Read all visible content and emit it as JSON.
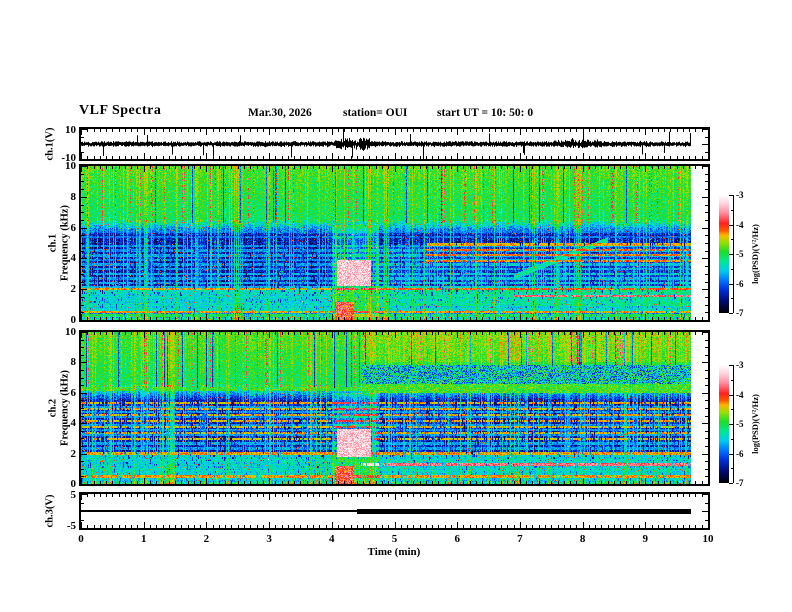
{
  "header": {
    "title": "VLF Spectra",
    "date": "Mar.30, 2026",
    "station": "station= OUI",
    "start_ut": "start UT =  10: 50: 0"
  },
  "time_axis": {
    "label": "Time (min)",
    "ticks": [
      "0",
      "1",
      "2",
      "3",
      "4",
      "5",
      "6",
      "7",
      "8",
      "9",
      "10"
    ]
  },
  "panels": {
    "ch1_wave": {
      "label": "ch.1(V)",
      "yticks": [
        "10",
        "-10"
      ],
      "ylim": [
        -10,
        10
      ]
    },
    "spec1": {
      "label_ch": "ch.1",
      "label_freq": "Frequency (kHz)",
      "yticks": [
        "10",
        "8",
        "6",
        "4",
        "2",
        "0"
      ],
      "ylim": [
        0,
        10
      ]
    },
    "spec2": {
      "label_ch": "ch.2",
      "label_freq": "Frequency (kHz)",
      "yticks": [
        "10",
        "8",
        "6",
        "4",
        "2",
        "0"
      ],
      "ylim": [
        0,
        10
      ]
    },
    "ch3": {
      "label": "ch.3(V)",
      "yticks": [
        "5",
        "-5"
      ],
      "ylim": [
        -5,
        5
      ]
    }
  },
  "colorbar": {
    "label": "log(PSD)(V²/Hz)",
    "ticks": [
      "-3",
      "-4",
      "-5",
      "-6",
      "-7"
    ],
    "range": [
      -3,
      -7
    ]
  },
  "colormap_stops": [
    [
      0.0,
      "#000000"
    ],
    [
      0.1,
      "#000a70"
    ],
    [
      0.2,
      "#0030dd"
    ],
    [
      0.28,
      "#0077ff"
    ],
    [
      0.36,
      "#00ccee"
    ],
    [
      0.44,
      "#00e890"
    ],
    [
      0.52,
      "#1edc2a"
    ],
    [
      0.6,
      "#9ae000"
    ],
    [
      0.66,
      "#ffb400"
    ],
    [
      0.7,
      "#ff5500"
    ],
    [
      0.76,
      "#ff2222"
    ],
    [
      0.85,
      "#ff8fa0"
    ],
    [
      0.93,
      "#ffd6de"
    ],
    [
      1.0,
      "#ffffff"
    ]
  ],
  "gen": {
    "data_end_min": 9.73,
    "wave": {
      "seed": 101,
      "base_amp": 2.0,
      "bursts": [
        {
          "t": [
            4.05,
            4.6
          ],
          "amp": 5.5
        },
        {
          "t": [
            7.5,
            8.3
          ],
          "amp": 3.2
        }
      ],
      "spikes": [
        {
          "t": 0.35,
          "a": -8
        },
        {
          "t": 1.05,
          "a": 6
        },
        {
          "t": 1.45,
          "a": -7
        },
        {
          "t": 2.1,
          "a": -13
        },
        {
          "t": 3.35,
          "a": -9
        },
        {
          "t": 4.18,
          "a": 10
        },
        {
          "t": 4.32,
          "a": -9
        },
        {
          "t": 5.45,
          "a": -12
        },
        {
          "t": 6.5,
          "a": 7
        },
        {
          "t": 7.05,
          "a": -6
        },
        {
          "t": 8.0,
          "a": 6
        },
        {
          "t": 8.95,
          "a": -7
        },
        {
          "t": 9.3,
          "a": -6
        }
      ]
    },
    "spec1": {
      "seed": 7,
      "knots": [
        [
          0,
          -5.3
        ],
        [
          0.35,
          -5.95
        ],
        [
          1,
          -6.1
        ],
        [
          2,
          -6.45
        ],
        [
          5.5,
          -6.45
        ],
        [
          6.5,
          -5.1
        ],
        [
          8,
          -5.0
        ],
        [
          10,
          -4.85
        ]
      ],
      "hlines": [
        {
          "f": 4.8,
          "v": -5.8,
          "w": 0.05
        },
        {
          "f": 4.5,
          "v": -5.8,
          "w": 0.05
        },
        {
          "f": 4.2,
          "v": -5.75,
          "w": 0.05
        },
        {
          "f": 3.9,
          "v": -5.8,
          "w": 0.05
        },
        {
          "f": 3.6,
          "v": -5.75,
          "w": 0.05
        },
        {
          "f": 3.3,
          "v": -5.8,
          "w": 0.05
        },
        {
          "f": 3.0,
          "v": -5.7,
          "w": 0.05
        },
        {
          "f": 2.7,
          "v": -5.75,
          "w": 0.05
        },
        {
          "f": 2.4,
          "v": -5.7,
          "w": 0.05
        },
        {
          "f": 2.1,
          "v": -5.6,
          "w": 0.05
        },
        {
          "f": 5.4,
          "v": -5.9,
          "w": 0.05
        },
        {
          "f": 5.75,
          "v": -5.9,
          "w": 0.05
        },
        {
          "f": 1.9,
          "v": -5.35,
          "w": 0.07
        },
        {
          "f": 1.75,
          "v": -5.4,
          "w": 0.06
        },
        {
          "f": 1.6,
          "v": -5.5,
          "w": 0.06
        },
        {
          "f": 1.45,
          "v": -5.45,
          "w": 0.06
        },
        {
          "f": 1.3,
          "v": -5.5,
          "w": 0.06
        },
        {
          "f": 1.15,
          "v": -5.5,
          "w": 0.06
        },
        {
          "f": 1.0,
          "v": -5.45,
          "w": 0.06
        },
        {
          "f": 0.85,
          "v": -5.5,
          "w": 0.06
        },
        {
          "f": 0.7,
          "v": -5.45,
          "w": 0.06
        },
        {
          "f": 0.55,
          "v": -5.5,
          "w": 0.06
        },
        {
          "f": 2.0,
          "v": -4.35,
          "w": 0.04
        },
        {
          "f": 0.5,
          "v": -4.35,
          "w": 0.04
        },
        {
          "f": 0.3,
          "v": -5.05,
          "w": 0.08
        },
        {
          "f": 4.9,
          "v": -4.4,
          "w": 0.04,
          "t0": 5.5
        },
        {
          "f": 4.55,
          "v": -4.4,
          "w": 0.04,
          "t0": 5.5
        },
        {
          "f": 4.2,
          "v": -4.4,
          "w": 0.04,
          "t0": 5.5
        },
        {
          "f": 3.85,
          "v": -4.45,
          "w": 0.04,
          "t0": 5.5
        },
        {
          "f": 1.55,
          "v": -3.9,
          "w": 0.05,
          "t0": 6.9
        }
      ],
      "features": [
        {
          "t": [
            4.7,
            9.73
          ],
          "f": [
            0.9,
            4.8
          ],
          "mode": "add",
          "v": 0.18
        },
        {
          "t": [
            4.0,
            4.75
          ],
          "f": [
            0,
            6.2
          ],
          "mode": "add",
          "v": 0.5
        },
        {
          "t": [
            4.08,
            4.62
          ],
          "f": [
            2.2,
            3.9
          ],
          "mode": "set",
          "v": -3.35,
          "noise": 0.3
        },
        {
          "t": [
            4.05,
            4.35
          ],
          "f": [
            0,
            1.2
          ],
          "mode": "set",
          "v": -3.9,
          "noise": 0.45
        },
        {
          "t": [
            6.9,
            8.4
          ],
          "f": [
            2.8,
            5.2
          ],
          "mode": "diag",
          "v": -5.3,
          "w": 0.18
        }
      ]
    },
    "spec2": {
      "seed": 23,
      "knots": [
        [
          0,
          -5.3
        ],
        [
          0.35,
          -5.95
        ],
        [
          1,
          -6.1
        ],
        [
          2,
          -6.45
        ],
        [
          5.5,
          -6.45
        ],
        [
          6.5,
          -5.1
        ],
        [
          8,
          -5.0
        ],
        [
          10,
          -4.85
        ]
      ],
      "hlines": [
        {
          "f": 5.35,
          "v": -4.4,
          "w": 0.04,
          "p": 0.7
        },
        {
          "f": 4.95,
          "v": -4.4,
          "w": 0.04,
          "p": 0.7
        },
        {
          "f": 4.55,
          "v": -4.4,
          "w": 0.04,
          "p": 0.7
        },
        {
          "f": 4.15,
          "v": -4.4,
          "w": 0.04,
          "p": 0.7
        },
        {
          "f": 3.75,
          "v": -4.45,
          "w": 0.04,
          "p": 0.7
        },
        {
          "f": 3.35,
          "v": -4.4,
          "w": 0.04,
          "p": 0.7
        },
        {
          "f": 2.95,
          "v": -4.45,
          "w": 0.04,
          "p": 0.7
        },
        {
          "f": 5.05,
          "v": -5.75,
          "w": 0.05
        },
        {
          "f": 4.75,
          "v": -5.75,
          "w": 0.05
        },
        {
          "f": 4.45,
          "v": -5.8,
          "w": 0.05
        },
        {
          "f": 3.85,
          "v": -5.75,
          "w": 0.05
        },
        {
          "f": 3.55,
          "v": -5.8,
          "w": 0.05
        },
        {
          "f": 3.25,
          "v": -5.75,
          "w": 0.05
        },
        {
          "f": 2.65,
          "v": -5.7,
          "w": 0.05
        },
        {
          "f": 2.35,
          "v": -5.75,
          "w": 0.05
        },
        {
          "f": 2.05,
          "v": -5.7,
          "w": 0.05
        },
        {
          "f": 1.85,
          "v": -5.45,
          "w": 0.06
        },
        {
          "f": 1.7,
          "v": -5.5,
          "w": 0.06
        },
        {
          "f": 1.55,
          "v": -5.45,
          "w": 0.06
        },
        {
          "f": 1.4,
          "v": -5.5,
          "w": 0.06
        },
        {
          "f": 1.25,
          "v": -5.45,
          "w": 0.06
        },
        {
          "f": 1.1,
          "v": -5.5,
          "w": 0.06
        },
        {
          "f": 0.95,
          "v": -5.45,
          "w": 0.06
        },
        {
          "f": 0.8,
          "v": -5.5,
          "w": 0.06
        },
        {
          "f": 0.65,
          "v": -5.45,
          "w": 0.06
        },
        {
          "f": 0.5,
          "v": -5.5,
          "w": 0.06
        },
        {
          "f": 0.35,
          "v": -5.45,
          "w": 0.06
        },
        {
          "f": 6.25,
          "v": -4.9,
          "w": 0.12,
          "p": 0.9
        },
        {
          "f": 2.0,
          "v": -4.35,
          "w": 0.04
        },
        {
          "f": 0.5,
          "v": -4.35,
          "w": 0.04
        },
        {
          "f": 1.3,
          "v": -3.7,
          "w": 0.05,
          "t0": 4.45
        }
      ],
      "features": [
        {
          "t": [
            4.45,
            9.73
          ],
          "f": [
            8,
            10
          ],
          "mode": "add",
          "v": 0.15
        },
        {
          "t": [
            4.45,
            9.73
          ],
          "f": [
            6.6,
            7.8
          ],
          "mode": "set",
          "v": -5.5,
          "noise": 0.85
        },
        {
          "t": [
            4.45,
            9.73
          ],
          "f": [
            6.0,
            6.6
          ],
          "mode": "set",
          "v": -4.85,
          "noise": 0.3
        },
        {
          "t": [
            4.0,
            4.75
          ],
          "f": [
            0,
            6.0
          ],
          "mode": "add",
          "v": 0.5
        },
        {
          "t": [
            4.08,
            4.62
          ],
          "f": [
            1.8,
            3.6
          ],
          "mode": "set",
          "v": -3.35,
          "noise": 0.3
        },
        {
          "t": [
            4.05,
            4.35
          ],
          "f": [
            0,
            1.2
          ],
          "mode": "set",
          "v": -3.9,
          "noise": 0.45
        }
      ]
    },
    "ch3": {
      "value": 0,
      "segments": [
        {
          "t": [
            0,
            4.4
          ],
          "lw": 2
        },
        {
          "t": [
            4.4,
            9.73
          ],
          "lw": 5
        }
      ]
    }
  },
  "chart_data": [
    {
      "type": "line",
      "panel": "ch.1(V) waveform",
      "xlabel": "Time (min)",
      "xlim": [
        0,
        10
      ],
      "ylim": [
        -10,
        10
      ],
      "description": "Broadband audio waveform fluctuating about 0 V with impulsive spikes (notable near t≈2.1, 4.2–4.6, 5.45 min); amplitude burst at t≈4.1–4.6 min; recording ends at t≈9.73 min"
    },
    {
      "type": "heatmap",
      "panel": "ch.1 spectrogram",
      "ylabel": "Frequency (kHz)",
      "xlim": [
        0,
        10
      ],
      "ylim": [
        0,
        10
      ],
      "zlabel": "log(PSD)(V²/Hz)",
      "zlim": [
        -7,
        -3
      ],
      "description": "Strong broadband hiss (green/yellow, ≈-5 to -4.5) above ~6.5 kHz with red sferic streaks; low PSD (dark blue ≈-6.5) from 2–5.5 kHz crossed by many vertical sferic lines; narrow horizontal hum-harmonic lines below 2 kHz; bright white event patch at t≈4.1–4.6 min, 2–4 kHz; maroon harmonic lines 3.8–5 kHz after t≈5.5 min; bright cyan line near 1.55 kHz after t≈6.9 min"
    },
    {
      "type": "heatmap",
      "panel": "ch.2 spectrogram",
      "ylabel": "Frequency (kHz)",
      "xlim": [
        0,
        10
      ],
      "ylim": [
        0,
        10
      ],
      "zlabel": "log(PSD)(V²/Hz)",
      "zlim": [
        -7,
        -3
      ],
      "description": "Similar to ch.1; after t≈4.45 min the upper band brightens, a cyan-blue speckle band appears at 6.6–7.8 kHz, a bright green line near 6.2 kHz, dark-red harmonic lines at 3–5.5 kHz, and a bright cyan line near 1.3 kHz; white event patch at t≈4.1–4.6 min, 1.8–3.6 kHz"
    },
    {
      "type": "line",
      "panel": "ch.3(V) level",
      "xlim": [
        0,
        10
      ],
      "ylim": [
        -5,
        5
      ],
      "series": [
        {
          "name": "ch.3 level",
          "segments": [
            {
              "t": [
                0,
                4.4
              ],
              "value": 0,
              "width": "thin"
            },
            {
              "t": [
                4.4,
                9.73
              ],
              "value": 0,
              "width": "thick"
            }
          ]
        }
      ]
    }
  ]
}
